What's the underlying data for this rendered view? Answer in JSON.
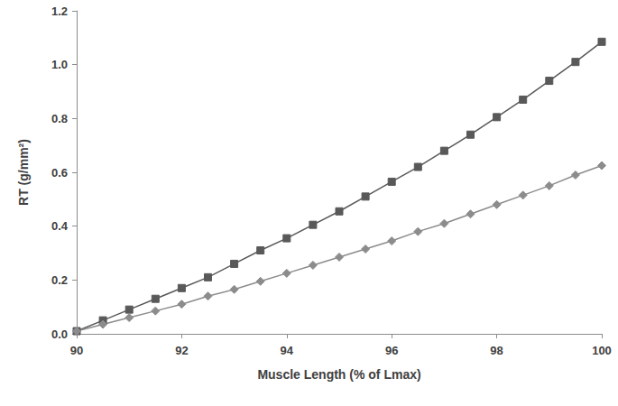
{
  "chart_data": {
    "type": "line",
    "xlabel": "Muscle Length (% of Lmax)",
    "ylabel": "RT (g/mm²)",
    "x": [
      90,
      90.5,
      91,
      91.5,
      92,
      92.5,
      93,
      93.5,
      94,
      94.5,
      95,
      95.5,
      96,
      96.5,
      97,
      97.5,
      98,
      98.5,
      99,
      99.5,
      100
    ],
    "series": [
      {
        "color": "#595959",
        "marker": "square",
        "values": [
          0.01,
          0.05,
          0.09,
          0.13,
          0.17,
          0.21,
          0.26,
          0.31,
          0.355,
          0.405,
          0.455,
          0.51,
          0.565,
          0.62,
          0.68,
          0.74,
          0.805,
          0.87,
          0.94,
          1.01,
          1.085
        ]
      },
      {
        "color": "#8c8c8c",
        "marker": "diamond",
        "values": [
          0.01,
          0.035,
          0.06,
          0.085,
          0.11,
          0.14,
          0.165,
          0.195,
          0.225,
          0.255,
          0.285,
          0.315,
          0.345,
          0.38,
          0.41,
          0.445,
          0.48,
          0.515,
          0.55,
          0.59,
          0.625
        ]
      }
    ],
    "xlim": [
      90,
      100
    ],
    "xticks": [
      90,
      92,
      94,
      96,
      98,
      100
    ],
    "ylim": [
      0,
      1.2
    ],
    "yticks": [
      {
        "value": 0,
        "label": "0.0"
      },
      0.2,
      0.4,
      0.6,
      0.8,
      {
        "value": 1,
        "label": "1.0"
      },
      1.2
    ],
    "grid": false
  }
}
